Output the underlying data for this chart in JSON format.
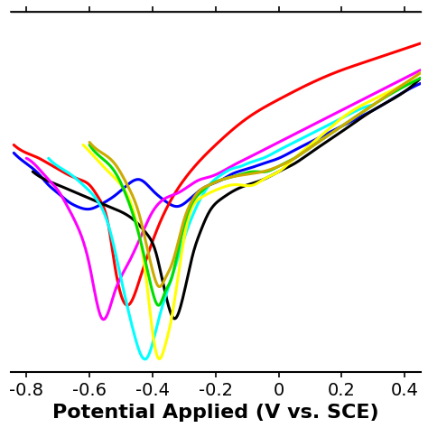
{
  "title": "",
  "xlabel": "Potential Applied (V vs. SCE)",
  "ylabel": "",
  "xlim": [
    -0.85,
    0.45
  ],
  "ylim": [
    -12,
    1.5
  ],
  "xticks": [
    -0.8,
    -0.6,
    -0.4,
    -0.2,
    0,
    0.2,
    0.4
  ],
  "xlabel_fontsize": 16,
  "tick_fontsize": 14,
  "linewidth": 2.2,
  "colors": {
    "blue": "#0000ff",
    "red": "#ff0000",
    "black": "#000000",
    "magenta": "#ff00ff",
    "cyan": "#00ffff",
    "yellow": "#ffff00",
    "green": "#00dd00",
    "olive": "#ccaa00"
  },
  "curves": {
    "blue": {
      "x": [
        -0.84,
        -0.8,
        -0.76,
        -0.73,
        -0.7,
        -0.67,
        -0.64,
        -0.6,
        -0.56,
        -0.52,
        -0.48,
        -0.44,
        -0.4,
        -0.36,
        -0.32,
        -0.28,
        -0.25,
        -0.22,
        -0.18,
        -0.15,
        -0.1,
        -0.05,
        0.0,
        0.05,
        0.1,
        0.15,
        0.2,
        0.25,
        0.3,
        0.4,
        0.45
      ],
      "y": [
        -3.8,
        -4.2,
        -4.6,
        -5.0,
        -5.3,
        -5.6,
        -5.8,
        -5.9,
        -5.7,
        -5.4,
        -5.0,
        -4.8,
        -5.2,
        -5.6,
        -5.8,
        -5.5,
        -5.2,
        -5.0,
        -4.8,
        -4.6,
        -4.4,
        -4.2,
        -4.0,
        -3.7,
        -3.4,
        -3.1,
        -2.8,
        -2.5,
        -2.2,
        -1.5,
        -1.2
      ]
    },
    "red": {
      "x": [
        -0.84,
        -0.8,
        -0.76,
        -0.73,
        -0.7,
        -0.67,
        -0.63,
        -0.6,
        -0.57,
        -0.54,
        -0.52,
        -0.48,
        -0.44,
        -0.38,
        -0.3,
        -0.2,
        -0.1,
        0.0,
        0.1,
        0.2,
        0.3,
        0.4,
        0.45
      ],
      "y": [
        -3.5,
        -3.8,
        -4.0,
        -4.2,
        -4.4,
        -4.6,
        -4.8,
        -5.0,
        -5.5,
        -6.5,
        -8.0,
        -9.5,
        -8.5,
        -6.5,
        -4.8,
        -3.5,
        -2.5,
        -1.8,
        -1.2,
        -0.7,
        -0.3,
        0.1,
        0.3
      ]
    },
    "black": {
      "x": [
        -0.78,
        -0.74,
        -0.7,
        -0.66,
        -0.62,
        -0.58,
        -0.54,
        -0.5,
        -0.46,
        -0.42,
        -0.39,
        -0.37,
        -0.35,
        -0.33,
        -0.31,
        -0.29,
        -0.27,
        -0.25,
        -0.22,
        -0.18,
        -0.14,
        -0.1,
        -0.05,
        0.0,
        0.05,
        0.1,
        0.15,
        0.2,
        0.3,
        0.4,
        0.45
      ],
      "y": [
        -4.5,
        -4.8,
        -5.0,
        -5.2,
        -5.4,
        -5.6,
        -5.8,
        -6.0,
        -6.3,
        -6.8,
        -7.5,
        -8.5,
        -9.5,
        -10.0,
        -9.5,
        -8.5,
        -7.5,
        -6.8,
        -6.0,
        -5.5,
        -5.2,
        -5.0,
        -4.8,
        -4.5,
        -4.2,
        -3.8,
        -3.4,
        -3.0,
        -2.2,
        -1.5,
        -1.0
      ]
    },
    "magenta": {
      "x": [
        -0.8,
        -0.76,
        -0.73,
        -0.7,
        -0.67,
        -0.64,
        -0.6,
        -0.56,
        -0.52,
        -0.48,
        -0.44,
        -0.4,
        -0.36,
        -0.32,
        -0.28,
        -0.25,
        -0.22,
        -0.18,
        -0.15,
        -0.1,
        -0.05,
        0.0,
        0.05,
        0.1,
        0.2,
        0.3,
        0.4,
        0.45
      ],
      "y": [
        -4.0,
        -4.4,
        -4.8,
        -5.2,
        -5.8,
        -6.5,
        -8.0,
        -10.0,
        -9.0,
        -8.0,
        -7.0,
        -6.0,
        -5.5,
        -5.3,
        -5.0,
        -4.8,
        -4.7,
        -4.5,
        -4.3,
        -4.0,
        -3.7,
        -3.4,
        -3.1,
        -2.8,
        -2.2,
        -1.6,
        -1.0,
        -0.7
      ]
    },
    "cyan": {
      "x": [
        -0.73,
        -0.7,
        -0.66,
        -0.62,
        -0.58,
        -0.54,
        -0.5,
        -0.46,
        -0.42,
        -0.38,
        -0.34,
        -0.3,
        -0.26,
        -0.22,
        -0.18,
        -0.15,
        -0.12,
        -0.1,
        -0.05,
        0.0,
        0.05,
        0.1,
        0.15,
        0.2,
        0.25,
        0.3
      ],
      "y": [
        -4.0,
        -4.3,
        -4.6,
        -5.0,
        -5.5,
        -6.5,
        -8.5,
        -10.5,
        -11.5,
        -10.0,
        -8.5,
        -7.0,
        -5.8,
        -5.0,
        -4.6,
        -4.4,
        -4.3,
        -4.2,
        -4.0,
        -3.7,
        -3.4,
        -3.1,
        -2.8,
        -2.5,
        -2.2,
        -2.0
      ]
    },
    "yellow": {
      "x": [
        -0.62,
        -0.58,
        -0.54,
        -0.5,
        -0.46,
        -0.44,
        -0.42,
        -0.4,
        -0.38,
        -0.36,
        -0.34,
        -0.32,
        -0.3,
        -0.28,
        -0.25,
        -0.22,
        -0.18,
        -0.15,
        -0.12,
        -0.08,
        -0.05,
        0.0,
        0.05,
        0.1,
        0.15,
        0.2,
        0.3,
        0.4,
        0.45
      ],
      "y": [
        -3.5,
        -4.0,
        -4.5,
        -5.0,
        -6.0,
        -7.0,
        -8.5,
        -10.5,
        -11.5,
        -11.0,
        -10.0,
        -8.5,
        -7.0,
        -6.0,
        -5.5,
        -5.3,
        -5.1,
        -5.0,
        -5.0,
        -5.0,
        -4.8,
        -4.5,
        -4.0,
        -3.5,
        -3.0,
        -2.5,
        -1.8,
        -1.2,
        -0.8
      ]
    },
    "green": {
      "x": [
        -0.6,
        -0.56,
        -0.52,
        -0.48,
        -0.44,
        -0.42,
        -0.4,
        -0.38,
        -0.36,
        -0.34,
        -0.32,
        -0.3,
        -0.28,
        -0.25,
        -0.22,
        -0.18,
        -0.15,
        -0.12,
        -0.08,
        -0.04,
        0.0,
        0.05,
        0.1,
        0.15,
        0.2,
        0.25,
        0.3,
        0.4,
        0.45
      ],
      "y": [
        -3.5,
        -4.0,
        -4.5,
        -5.5,
        -7.0,
        -8.0,
        -9.0,
        -9.5,
        -9.0,
        -8.5,
        -7.5,
        -6.5,
        -5.8,
        -5.3,
        -5.0,
        -4.8,
        -4.7,
        -4.6,
        -4.5,
        -4.5,
        -4.3,
        -4.0,
        -3.6,
        -3.2,
        -2.8,
        -2.4,
        -2.0,
        -1.3,
        -1.0
      ]
    },
    "olive": {
      "x": [
        -0.6,
        -0.56,
        -0.52,
        -0.48,
        -0.44,
        -0.42,
        -0.4,
        -0.38,
        -0.36,
        -0.34,
        -0.32,
        -0.3,
        -0.28,
        -0.25,
        -0.22,
        -0.18,
        -0.15,
        -0.1,
        -0.05,
        0.0,
        0.05,
        0.1,
        0.15,
        0.2,
        0.25,
        0.3,
        0.4,
        0.45
      ],
      "y": [
        -3.4,
        -3.8,
        -4.2,
        -5.0,
        -6.2,
        -7.2,
        -8.2,
        -8.8,
        -8.5,
        -8.0,
        -7.2,
        -6.3,
        -5.7,
        -5.2,
        -5.0,
        -4.8,
        -4.7,
        -4.6,
        -4.5,
        -4.3,
        -4.0,
        -3.6,
        -3.2,
        -2.8,
        -2.4,
        -2.0,
        -1.2,
        -0.8
      ]
    }
  }
}
